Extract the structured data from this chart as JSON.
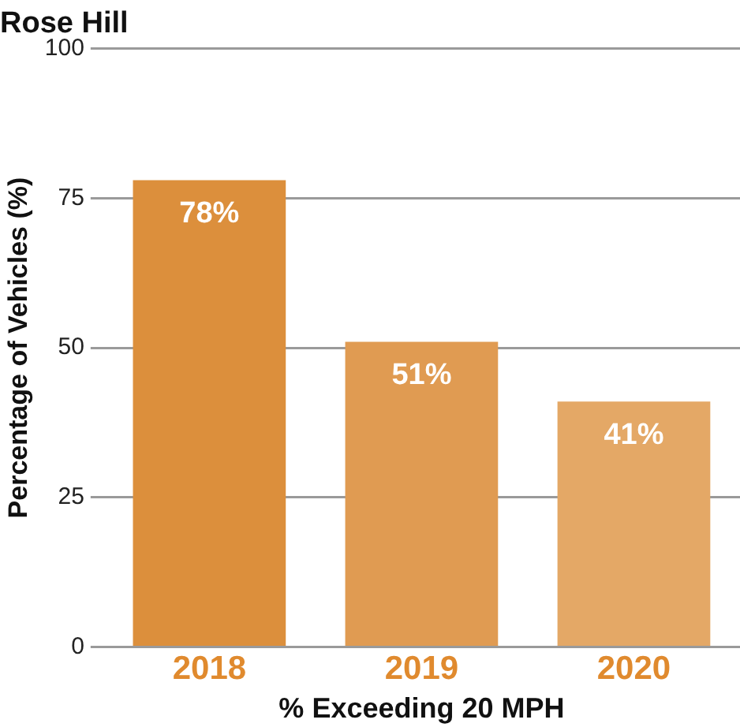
{
  "chart_data": {
    "type": "bar",
    "title": "Rose Hill",
    "xlabel": "% Exceeding 20 MPH",
    "ylabel": "Percentage of Vehicles (%)",
    "categories": [
      "2018",
      "2019",
      "2020"
    ],
    "values": [
      78,
      51,
      41
    ],
    "colors": [
      "#dc8f3c",
      "#e09b52",
      "#e4a866"
    ],
    "value_labels": [
      "78%",
      "51%",
      "41%"
    ],
    "ylim": [
      0,
      100
    ],
    "yticks": [
      0,
      25,
      50,
      75,
      100
    ],
    "grid": "y",
    "legend": false
  }
}
